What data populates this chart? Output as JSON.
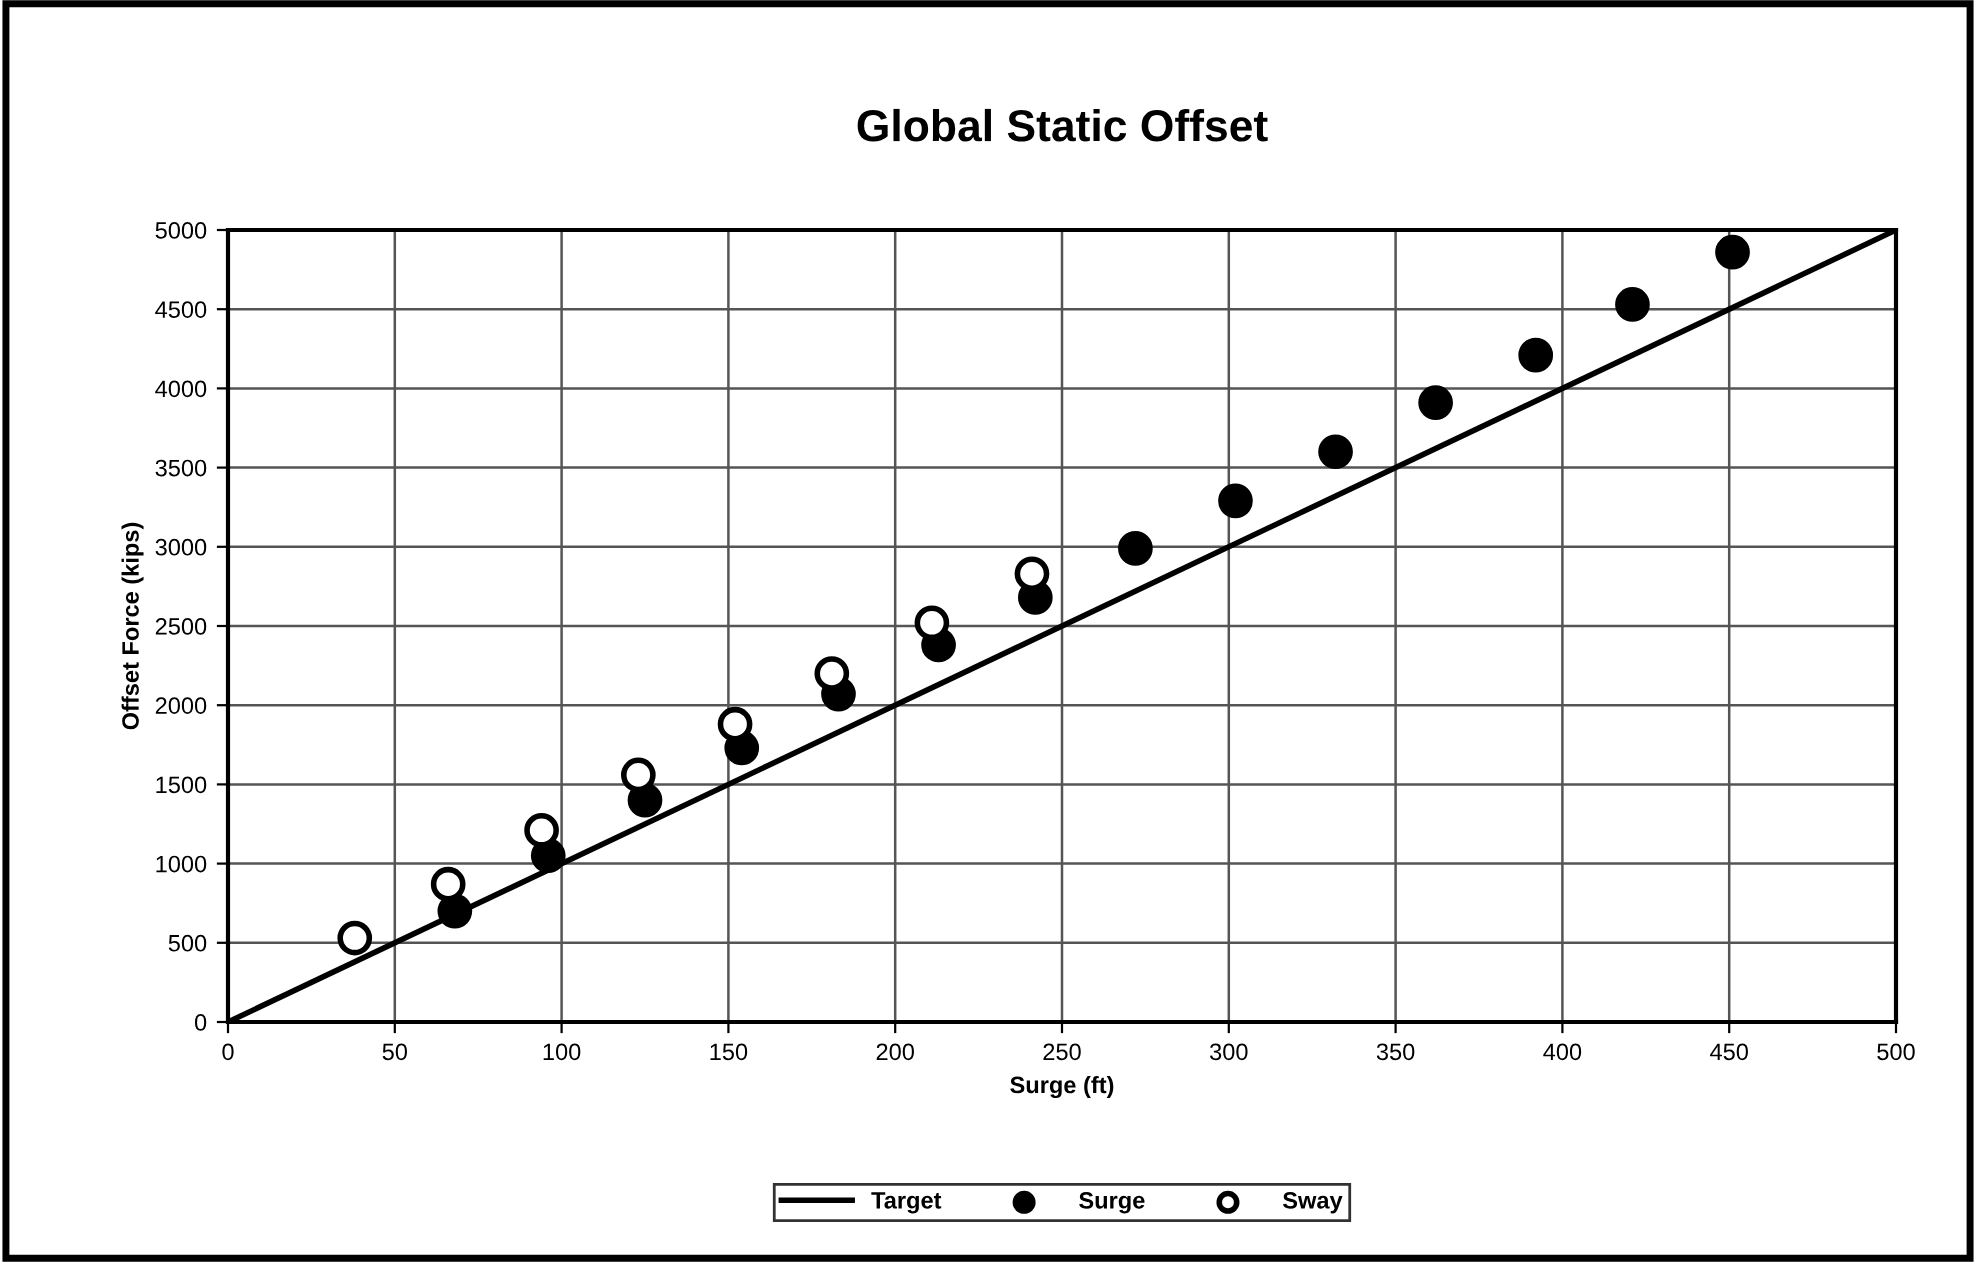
{
  "chart_data": {
    "type": "scatter",
    "title": "Global Static Offset",
    "xlabel": "Surge (ft)",
    "ylabel": "Offset Force (kips)",
    "series": [
      {
        "name": "Target",
        "type": "line",
        "color": "#000000",
        "marker": "none",
        "x": [
          0,
          500
        ],
        "values": [
          0,
          5000
        ]
      },
      {
        "name": "Surge",
        "color": "#000000",
        "marker": "circle",
        "x": [
          68,
          96,
          125,
          154,
          183,
          213,
          242,
          272,
          302,
          332,
          362,
          392,
          421,
          451
        ],
        "values": [
          700,
          1050,
          1400,
          1730,
          2070,
          2380,
          2680,
          2990,
          3290,
          3600,
          3910,
          4210,
          4530,
          4860
        ]
      },
      {
        "name": "Sway",
        "color": "#ffffff",
        "marker": "circle",
        "x": [
          38,
          66,
          94,
          123,
          152,
          181,
          211,
          241
        ],
        "values": [
          530,
          870,
          1210,
          1560,
          1880,
          2200,
          2520,
          2830
        ]
      }
    ],
    "xlim": [
      0,
      500
    ],
    "ylim": [
      0,
      5000
    ],
    "xticks": [
      0,
      50,
      100,
      150,
      200,
      250,
      300,
      350,
      400,
      450,
      500
    ],
    "yticks": [
      0,
      500,
      1000,
      1500,
      2000,
      2500,
      3000,
      3500,
      4000,
      4500,
      5000
    ],
    "grid": true,
    "legend": "bottom"
  }
}
